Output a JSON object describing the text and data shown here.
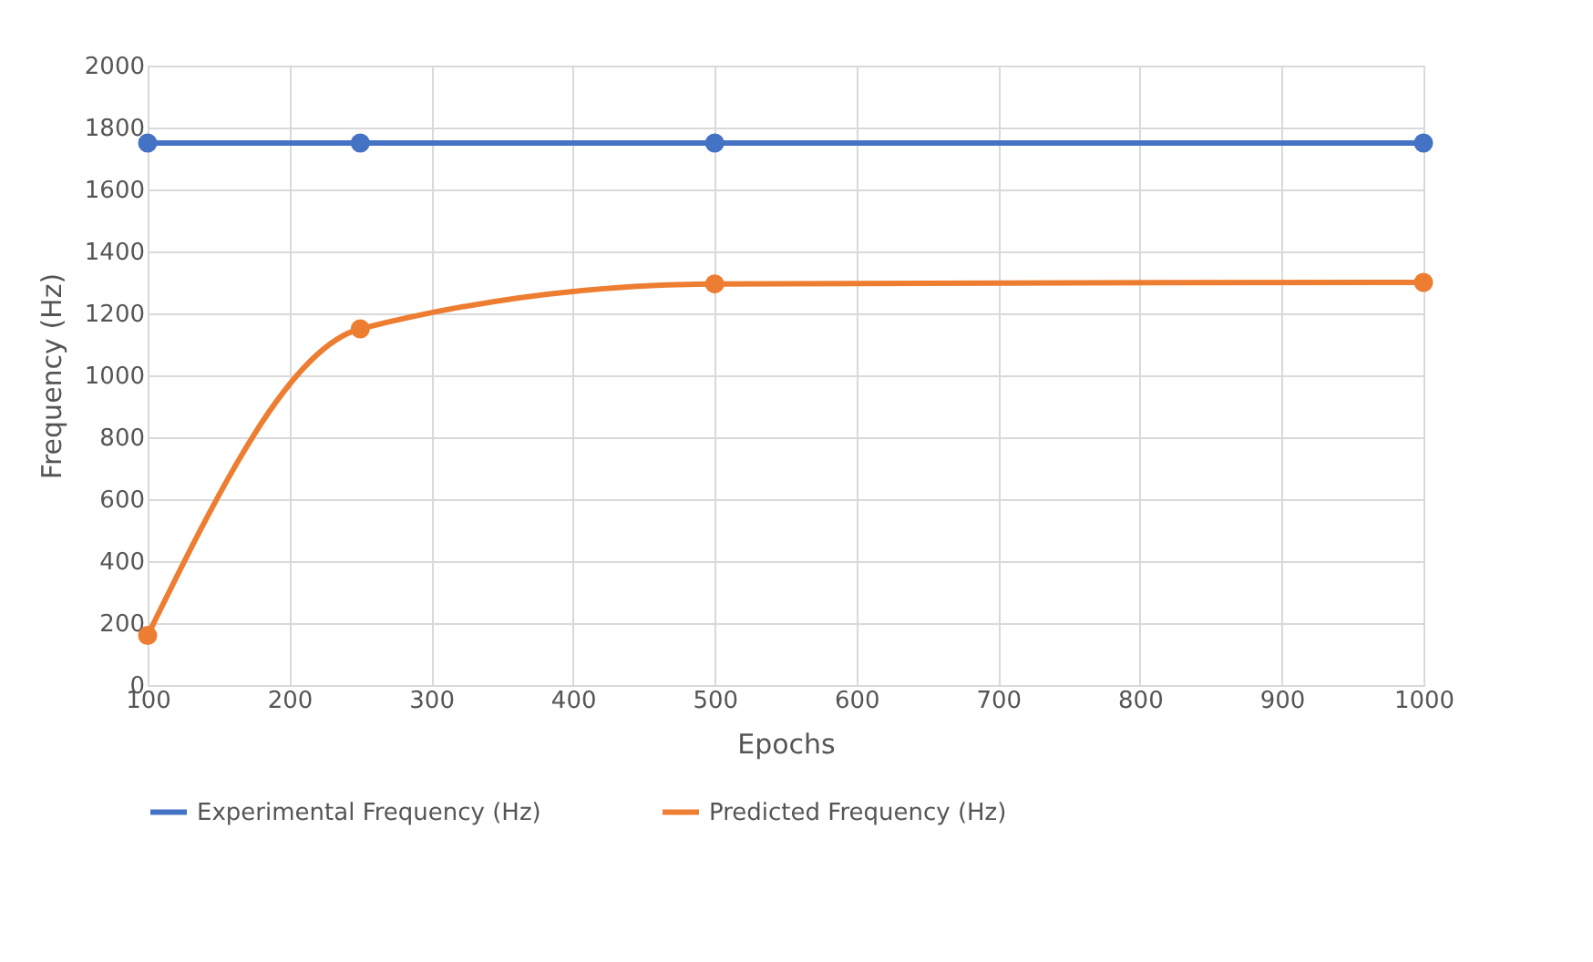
{
  "chart_data": {
    "type": "line",
    "xlabel": "Epochs",
    "ylabel": "Frequency (Hz)",
    "x": [
      100,
      250,
      500,
      1000
    ],
    "series": [
      {
        "name": "Experimental Frequency (Hz)",
        "color": "#4472c4",
        "values": [
          1750,
          1750,
          1750,
          1750
        ]
      },
      {
        "name": "Predicted Frequency (Hz)",
        "color": "#ed7d31",
        "values": [
          160,
          1150,
          1295,
          1300
        ]
      }
    ],
    "xlim": [
      100,
      1000
    ],
    "xticks": [
      100,
      200,
      300,
      400,
      500,
      600,
      700,
      800,
      900,
      1000
    ],
    "ylim": [
      0,
      2000
    ],
    "yticks": [
      0,
      200,
      400,
      600,
      800,
      1000,
      1200,
      1400,
      1600,
      1800,
      2000
    ],
    "grid": true,
    "legend": "bottom",
    "marker": "circle",
    "line_style": "solid"
  }
}
